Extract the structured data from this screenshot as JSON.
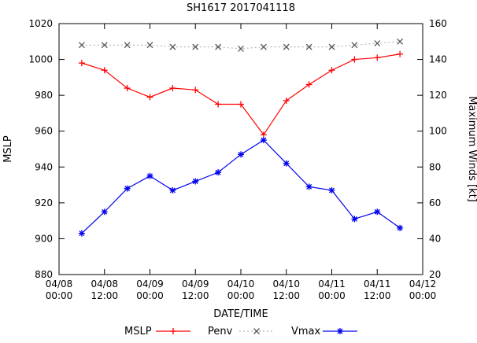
{
  "chart_data": {
    "type": "line",
    "title": "SH1617 2017041118",
    "xlabel": "DATE/TIME",
    "ylabel_left": "MSLP",
    "ylabel_right": "Maximum Winds [kt]",
    "x_range_hours": [
      0,
      96
    ],
    "x_tick_hours": [
      0,
      12,
      24,
      36,
      48,
      60,
      72,
      84,
      96
    ],
    "x_tick_labels": [
      [
        "04/08",
        "00:00"
      ],
      [
        "04/08",
        "12:00"
      ],
      [
        "04/09",
        "00:00"
      ],
      [
        "04/09",
        "12:00"
      ],
      [
        "04/10",
        "00:00"
      ],
      [
        "04/10",
        "12:00"
      ],
      [
        "04/11",
        "00:00"
      ],
      [
        "04/11",
        "12:00"
      ],
      [
        "04/12",
        "00:00"
      ]
    ],
    "ylim_left": [
      880,
      1020
    ],
    "yticks_left": [
      880,
      900,
      920,
      940,
      960,
      980,
      1000,
      1020
    ],
    "ylim_right": [
      20,
      160
    ],
    "yticks_right": [
      20,
      40,
      60,
      80,
      100,
      120,
      140,
      160
    ],
    "x_hours": [
      6,
      12,
      18,
      24,
      30,
      36,
      42,
      48,
      54,
      60,
      66,
      72,
      78,
      84,
      90
    ],
    "series": [
      {
        "name": "MSLP",
        "axis": "left",
        "color": "#ff0000",
        "marker_color": "#ff0000",
        "line": "solid",
        "marker": "plus",
        "values": [
          998,
          994,
          984,
          979,
          984,
          983,
          975,
          975,
          958,
          977,
          986,
          994,
          1000,
          1001,
          1003
        ]
      },
      {
        "name": "Penv",
        "axis": "left",
        "color": "#b8b8b8",
        "marker_color": "#5a5a5a",
        "line": "dotted",
        "marker": "cross",
        "values": [
          1008,
          1008,
          1008,
          1008,
          1007,
          1007,
          1007,
          1006,
          1007,
          1007,
          1007,
          1007,
          1008,
          1009,
          1010
        ]
      },
      {
        "name": "Vmax",
        "axis": "right",
        "color": "#0000ee",
        "marker_color": "#0000ee",
        "line": "solid",
        "marker": "star",
        "values": [
          43,
          55,
          68,
          75,
          67,
          72,
          77,
          87,
          95,
          82,
          69,
          67,
          51,
          55,
          46
        ]
      }
    ],
    "legend": [
      "MSLP",
      "Penv",
      "Vmax"
    ],
    "colors": {
      "axis": "#000000",
      "background": "#ffffff"
    }
  }
}
